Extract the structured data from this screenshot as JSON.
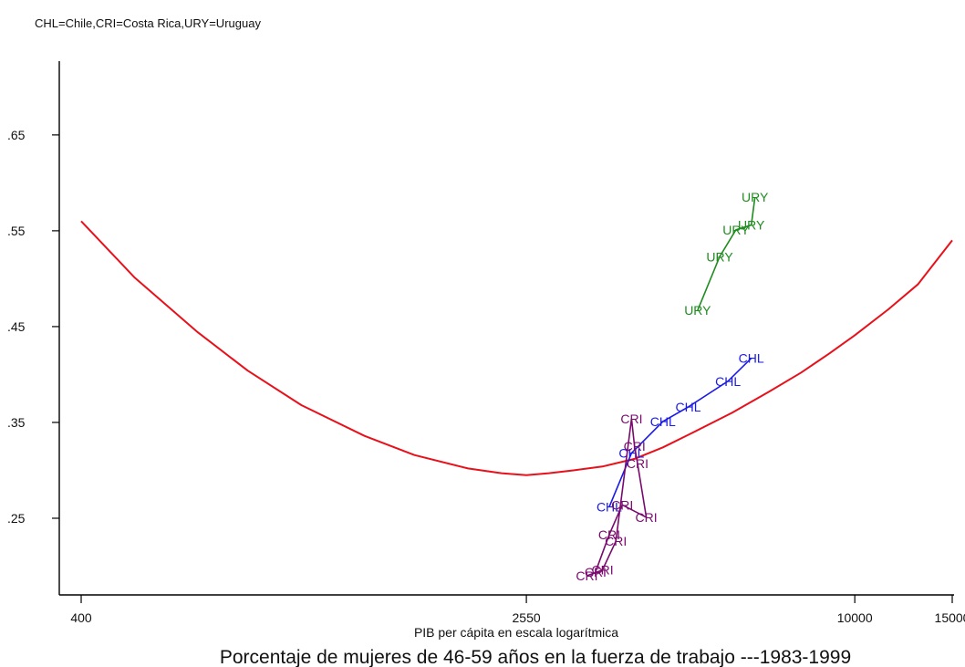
{
  "header": {
    "note": "CHL=Chile,CRI=Costa Rica,URY=Uruguay"
  },
  "footer": {
    "caption": "Porcentaje de mujeres de 46-59 años en la fuerza de trabajo ---1983-1999"
  },
  "colors": {
    "fit": "#e8101a",
    "CHL": "#1a1ae6",
    "CRI": "#7a0a6e",
    "URY": "#1f8c1f",
    "axis": "#000000"
  },
  "chart_data": {
    "type": "scatter",
    "xlabel": "PIB per cápita en escala logarítmica",
    "ylabel": "",
    "x_scale": "log",
    "xlim": [
      400,
      15000
    ],
    "ylim": [
      0.17,
      0.727
    ],
    "x_ticks": [
      400,
      2550,
      10000,
      15000
    ],
    "x_tick_labels": [
      "400",
      "2550",
      "10000",
      "15000"
    ],
    "y_ticks": [
      0.25,
      0.35,
      0.45,
      0.55,
      0.65
    ],
    "y_tick_labels": [
      ".25",
      ".35",
      ".45",
      ".55",
      ".65"
    ],
    "grid": false,
    "fit_curve": {
      "x": [
        400,
        500,
        650,
        800,
        1000,
        1300,
        1600,
        2000,
        2300,
        2550,
        2800,
        3100,
        3500,
        4000,
        4500,
        5000,
        6000,
        7000,
        8000,
        9000,
        10000,
        11500,
        13000,
        15000
      ],
      "y": [
        0.56,
        0.501,
        0.444,
        0.404,
        0.368,
        0.336,
        0.316,
        0.302,
        0.297,
        0.295,
        0.297,
        0.3,
        0.304,
        0.312,
        0.324,
        0.337,
        0.36,
        0.382,
        0.402,
        0.422,
        0.441,
        0.468,
        0.494,
        0.54
      ]
    },
    "series": [
      {
        "name": "CHL",
        "x": [
          3600,
          3950,
          4500,
          5000,
          5900,
          6500
        ],
        "y": [
          0.262,
          0.318,
          0.351,
          0.366,
          0.393,
          0.417
        ]
      },
      {
        "name": "CRI",
        "x": [
          3280,
          3500,
          3700,
          3950,
          4000,
          4050,
          4200,
          3800,
          3600,
          3400
        ],
        "y": [
          0.19,
          0.196,
          0.226,
          0.354,
          0.325,
          0.307,
          0.251,
          0.264,
          0.233,
          0.194
        ]
      },
      {
        "name": "URY",
        "x": [
          5200,
          5700,
          6100,
          6500,
          6600
        ],
        "y": [
          0.467,
          0.523,
          0.551,
          0.556,
          0.585
        ]
      }
    ]
  }
}
